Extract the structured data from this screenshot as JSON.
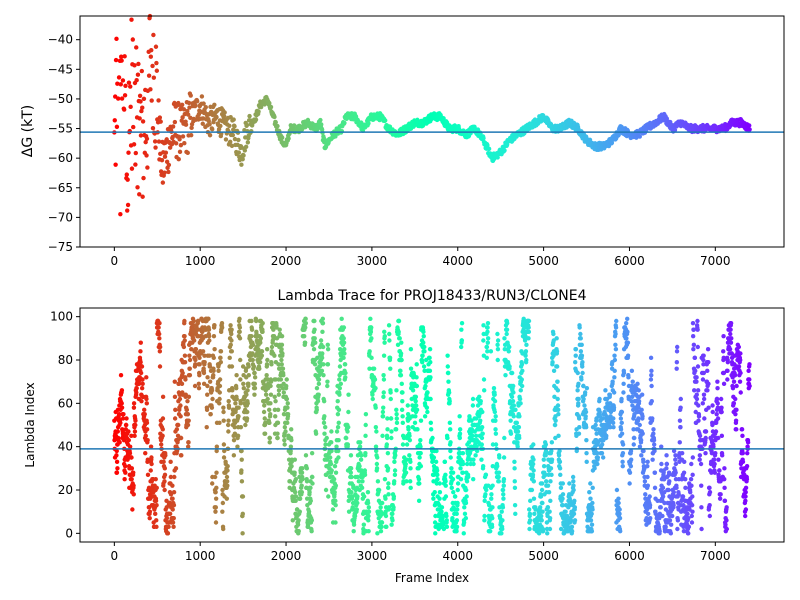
{
  "chart_data": [
    {
      "type": "scatter",
      "title": "",
      "xlabel": "",
      "ylabel": "ΔG (kT)",
      "xlim": [
        -400,
        7800
      ],
      "ylim": [
        -75,
        -36
      ],
      "xticks": [
        0,
        1000,
        2000,
        3000,
        4000,
        5000,
        6000,
        7000
      ],
      "yticks": [
        -75,
        -70,
        -65,
        -60,
        -55,
        -50,
        -45,
        -40
      ],
      "xtick_labels": [
        "0",
        "1000",
        "2000",
        "3000",
        "4000",
        "5000",
        "6000",
        "7000"
      ],
      "ytick_labels": [
        "−75",
        "−70",
        "−65",
        "−60",
        "−55",
        "−50",
        "−45",
        "−40"
      ],
      "hline": -55.6,
      "colormap": "rainbow (red at frame 0 → purple at last frame)",
      "trace_points": [
        [
          0,
          -60
        ],
        [
          40,
          -38.5
        ],
        [
          80,
          -43
        ],
        [
          120,
          -40
        ],
        [
          160,
          -60
        ],
        [
          200,
          -48
        ],
        [
          260,
          -50
        ],
        [
          320,
          -57
        ],
        [
          380,
          -52
        ],
        [
          440,
          -39
        ],
        [
          500,
          -52
        ],
        [
          560,
          -62
        ],
        [
          620,
          -58
        ],
        [
          700,
          -55
        ],
        [
          800,
          -56
        ],
        [
          900,
          -53
        ],
        [
          1000,
          -51
        ],
        [
          1100,
          -54
        ],
        [
          1200,
          -53
        ],
        [
          1300,
          -55
        ],
        [
          1400,
          -56
        ],
        [
          1480,
          -59
        ],
        [
          1550,
          -55
        ],
        [
          1650,
          -53
        ],
        [
          1700,
          -51
        ],
        [
          1780,
          -50
        ],
        [
          1850,
          -53
        ],
        [
          1950,
          -57
        ],
        [
          2000,
          -58
        ],
        [
          2050,
          -55
        ],
        [
          2150,
          -55
        ],
        [
          2250,
          -54
        ],
        [
          2350,
          -55
        ],
        [
          2400,
          -54
        ],
        [
          2450,
          -58
        ],
        [
          2550,
          -56
        ],
        [
          2650,
          -55
        ],
        [
          2700,
          -53
        ],
        [
          2800,
          -53
        ],
        [
          2900,
          -55
        ],
        [
          3000,
          -53
        ],
        [
          3100,
          -53
        ],
        [
          3200,
          -55
        ],
        [
          3300,
          -56
        ],
        [
          3400,
          -55
        ],
        [
          3500,
          -54
        ],
        [
          3600,
          -54
        ],
        [
          3700,
          -53
        ],
        [
          3800,
          -53
        ],
        [
          3900,
          -55
        ],
        [
          4000,
          -55
        ],
        [
          4100,
          -56
        ],
        [
          4200,
          -55
        ],
        [
          4300,
          -57
        ],
        [
          4400,
          -60
        ],
        [
          4500,
          -59
        ],
        [
          4600,
          -57
        ],
        [
          4700,
          -56
        ],
        [
          4800,
          -55
        ],
        [
          4900,
          -54
        ],
        [
          5000,
          -53
        ],
        [
          5100,
          -55
        ],
        [
          5200,
          -55
        ],
        [
          5300,
          -54
        ],
        [
          5400,
          -55
        ],
        [
          5500,
          -57
        ],
        [
          5600,
          -58
        ],
        [
          5700,
          -58
        ],
        [
          5800,
          -57
        ],
        [
          5900,
          -55
        ],
        [
          6000,
          -56
        ],
        [
          6100,
          -56
        ],
        [
          6200,
          -55
        ],
        [
          6300,
          -54
        ],
        [
          6400,
          -53
        ],
        [
          6500,
          -55
        ],
        [
          6600,
          -54
        ],
        [
          6700,
          -55
        ],
        [
          6800,
          -55
        ],
        [
          6900,
          -55
        ],
        [
          7000,
          -55
        ],
        [
          7100,
          -55
        ],
        [
          7200,
          -54
        ],
        [
          7300,
          -54
        ],
        [
          7400,
          -55
        ]
      ]
    },
    {
      "type": "scatter",
      "title": "Lambda Trace for PROJ18433/RUN3/CLONE4",
      "xlabel": "Frame Index",
      "ylabel": "Lambda Index",
      "xlim": [
        -400,
        7800
      ],
      "ylim": [
        -4,
        104
      ],
      "xticks": [
        0,
        1000,
        2000,
        3000,
        4000,
        5000,
        6000,
        7000
      ],
      "yticks": [
        0,
        20,
        40,
        60,
        80,
        100
      ],
      "xtick_labels": [
        "0",
        "1000",
        "2000",
        "3000",
        "4000",
        "5000",
        "6000",
        "7000"
      ],
      "ytick_labels": [
        "0",
        "20",
        "40",
        "60",
        "80",
        "100"
      ],
      "hline": 39,
      "colormap": "rainbow (red at frame 0 → purple at last frame)",
      "x_range": [
        0,
        7400
      ],
      "y_range": [
        0,
        99
      ]
    }
  ]
}
